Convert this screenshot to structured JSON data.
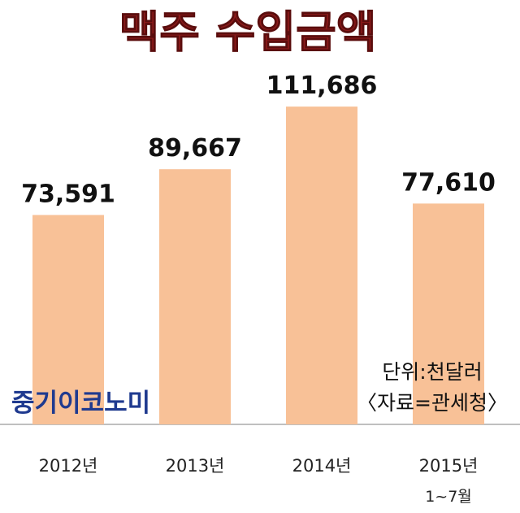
{
  "chart_data": {
    "type": "bar",
    "title": "맥주 수입금액",
    "categories": [
      "2012년",
      "2013년",
      "2014년",
      "2015년"
    ],
    "category_sublabels": [
      "",
      "",
      "",
      "1~7월"
    ],
    "values": [
      73591,
      89667,
      111686,
      77610
    ],
    "value_labels": [
      "73,591",
      "89,667",
      "111,686",
      "77,610"
    ],
    "unit_note": "단위:천달러",
    "source_note": "〈자료=관세청〉",
    "ylim": [
      0,
      120000
    ],
    "grid": false,
    "axis_visible": false
  },
  "watermark": "중기이코노미",
  "colors": {
    "bar": "#f8c197",
    "title": "#8b1a1a",
    "baseline": "#bfbfbf",
    "logo": "#1f3a8f"
  }
}
